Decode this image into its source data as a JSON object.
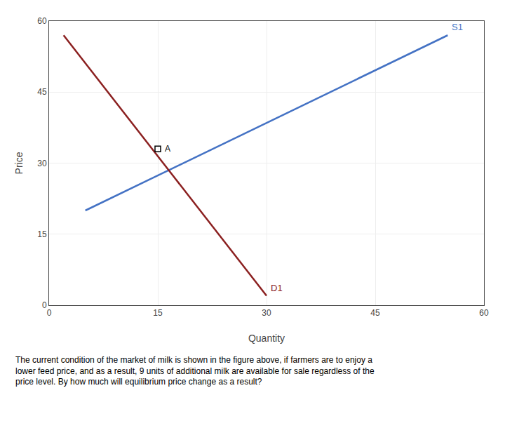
{
  "chart_data": {
    "type": "line",
    "xlabel": "Quantity",
    "ylabel": "Price",
    "xlim": [
      0,
      60
    ],
    "ylim": [
      0,
      60
    ],
    "xticks": [
      0,
      15,
      30,
      45,
      60
    ],
    "yticks": [
      0,
      15,
      30,
      45,
      60
    ],
    "grid": true,
    "series": [
      {
        "name": "S1",
        "color": "#4472c4",
        "x": [
          5,
          55
        ],
        "values": [
          20,
          57
        ]
      },
      {
        "name": "D1",
        "color": "#8b2020",
        "x": [
          2,
          30
        ],
        "values": [
          57,
          2
        ]
      },
      {
        "name": "A",
        "type": "scatter",
        "marker": "square",
        "color": "#000000",
        "x": [
          15
        ],
        "values": [
          33
        ]
      }
    ],
    "caption": "The current condition of the market of milk is shown in the figure above, if farmers are to enjoy a\nlower feed price, and as a result, 9 units of additional milk are available for sale regardless of the\nprice level. By how much will equilibrium price change as a result?"
  }
}
